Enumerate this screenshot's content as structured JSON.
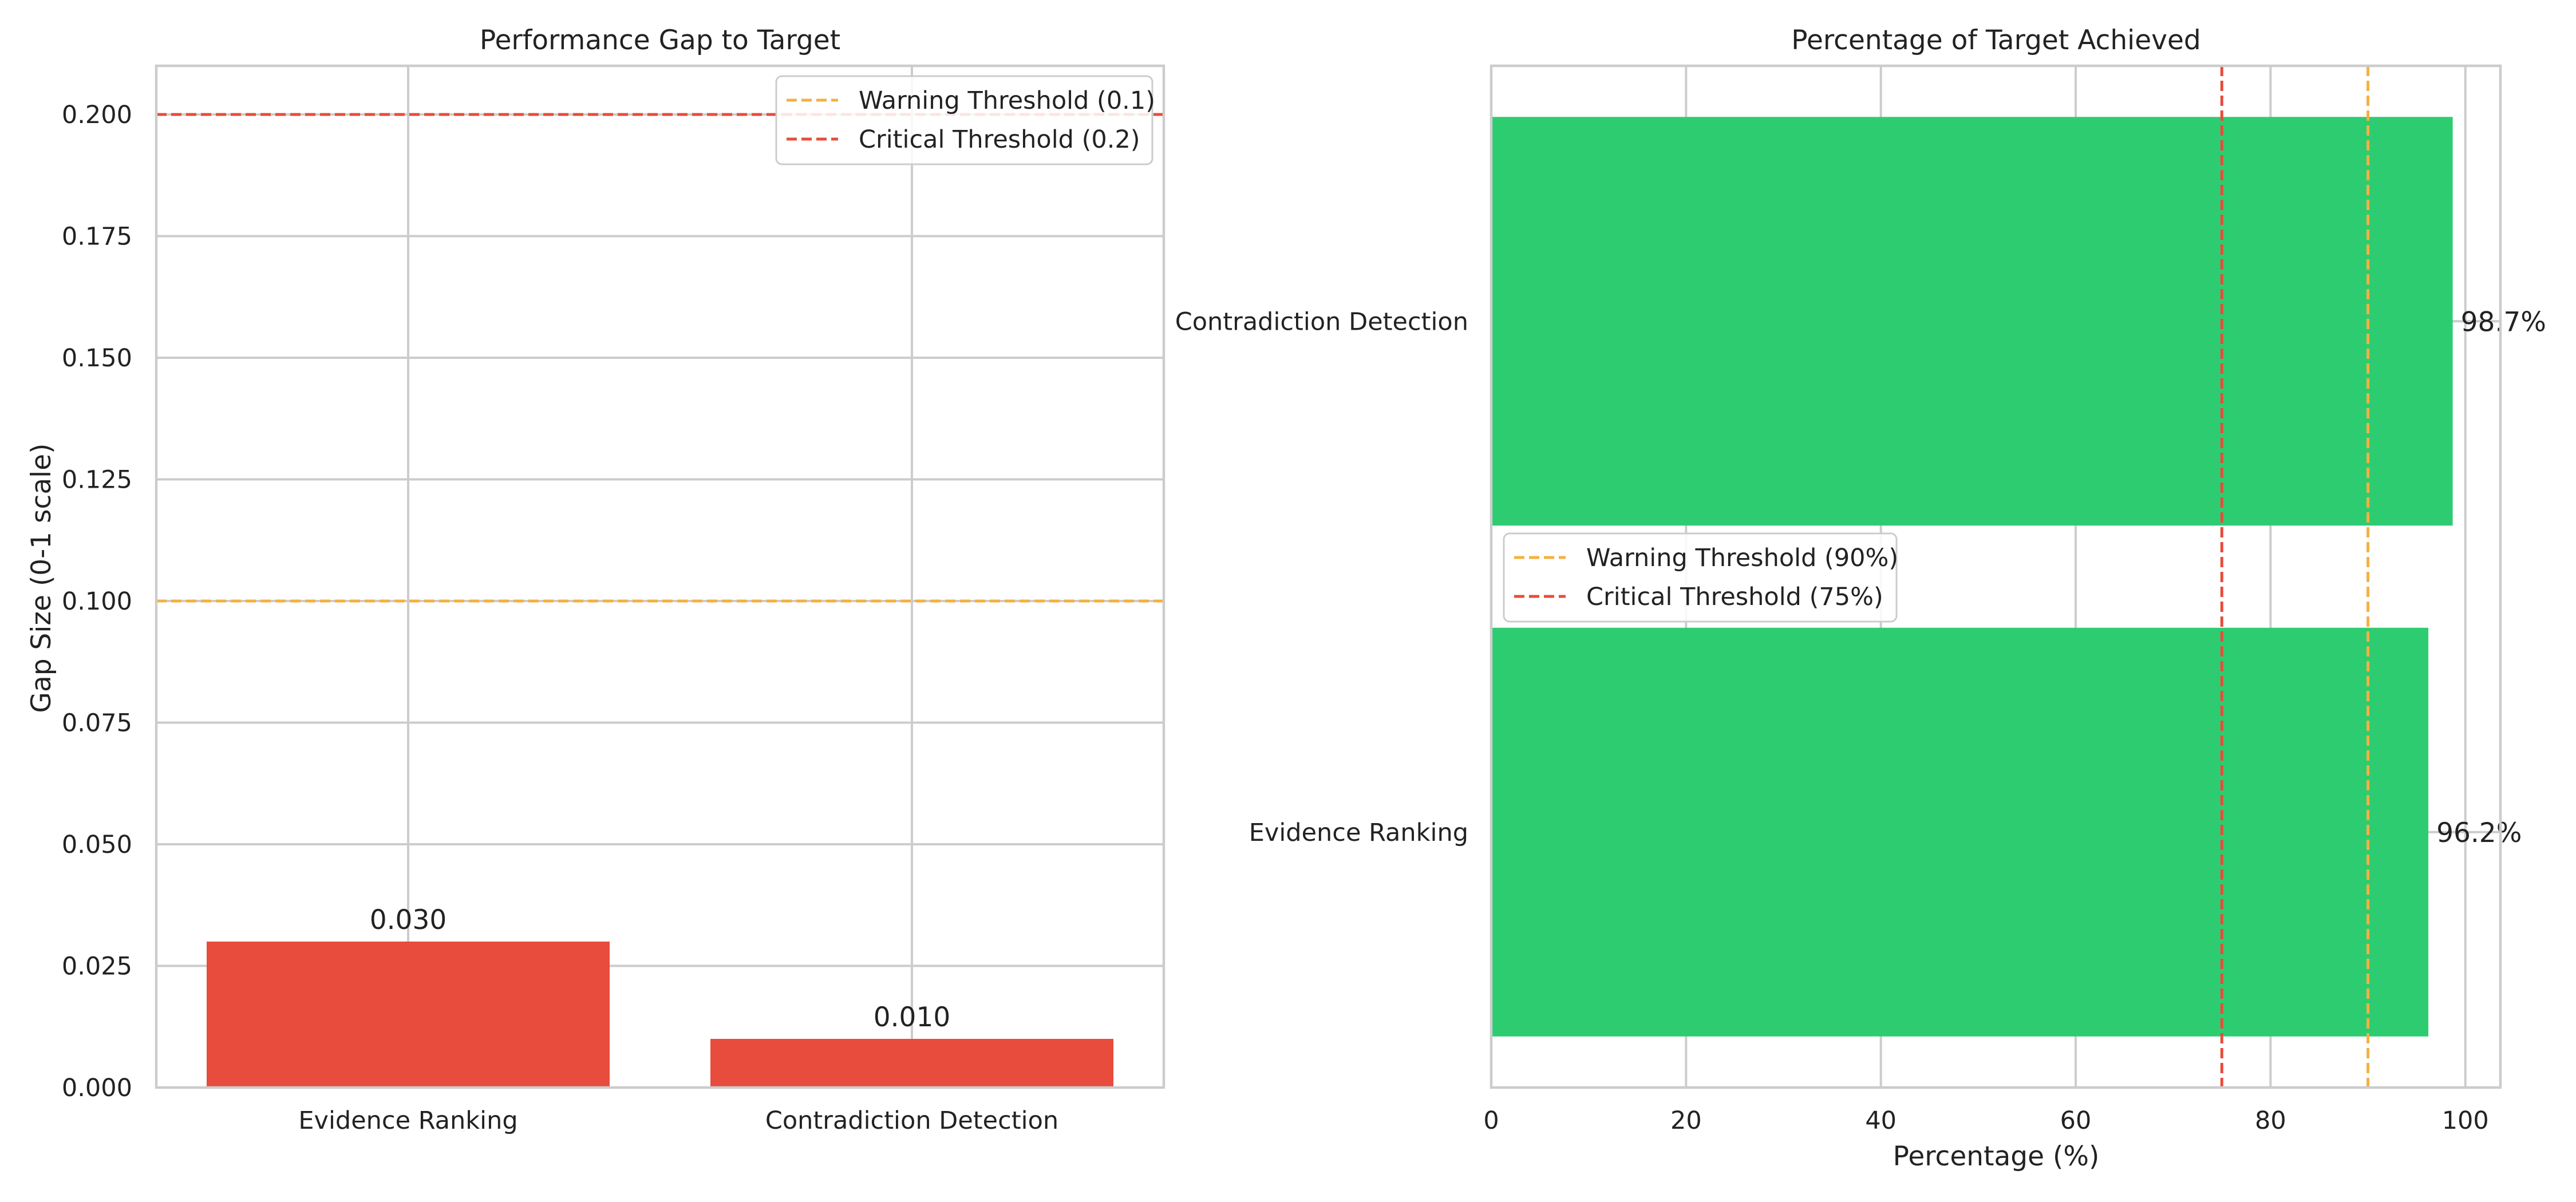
{
  "colors": {
    "bar_gap": "#e74c3c",
    "bar_pct": "#2ecc71",
    "warning": "#f5b041",
    "critical": "#e74c3c"
  },
  "chart_data": [
    {
      "type": "bar",
      "orientation": "vertical",
      "title": "Performance Gap to Target",
      "xlabel": "",
      "ylabel": "Gap Size (0-1 scale)",
      "categories": [
        "Evidence Ranking",
        "Contradiction Detection"
      ],
      "values": [
        0.03,
        0.01
      ],
      "data_labels": [
        "0.030",
        "0.010"
      ],
      "ylim": [
        0,
        0.21
      ],
      "yticks": [
        0.0,
        0.025,
        0.05,
        0.075,
        0.1,
        0.125,
        0.15,
        0.175,
        0.2
      ],
      "ytick_labels": [
        "0.000",
        "0.025",
        "0.050",
        "0.075",
        "0.100",
        "0.125",
        "0.150",
        "0.175",
        "0.200"
      ],
      "reference_lines": [
        {
          "value": 0.1,
          "label": "Warning Threshold (0.1)",
          "color": "#f5b041"
        },
        {
          "value": 0.2,
          "label": "Critical Threshold (0.2)",
          "color": "#e74c3c"
        }
      ],
      "grid": true,
      "legend_position": "upper right"
    },
    {
      "type": "bar",
      "orientation": "horizontal",
      "title": "Percentage of Target Achieved",
      "xlabel": "Percentage (%)",
      "ylabel": "",
      "categories": [
        "Evidence Ranking",
        "Contradiction Detection"
      ],
      "values": [
        96.2,
        98.7
      ],
      "data_labels": [
        "96.2%",
        "98.7%"
      ],
      "xlim": [
        0,
        103.6
      ],
      "xticks": [
        0,
        20,
        40,
        60,
        80,
        100
      ],
      "xtick_labels": [
        "0",
        "20",
        "40",
        "60",
        "80",
        "100"
      ],
      "reference_lines": [
        {
          "value": 90,
          "label": "Warning Threshold (90%)",
          "color": "#f5b041"
        },
        {
          "value": 75,
          "label": "Critical Threshold (75%)",
          "color": "#e74c3c"
        }
      ],
      "grid": true,
      "legend_position": "center left"
    }
  ]
}
